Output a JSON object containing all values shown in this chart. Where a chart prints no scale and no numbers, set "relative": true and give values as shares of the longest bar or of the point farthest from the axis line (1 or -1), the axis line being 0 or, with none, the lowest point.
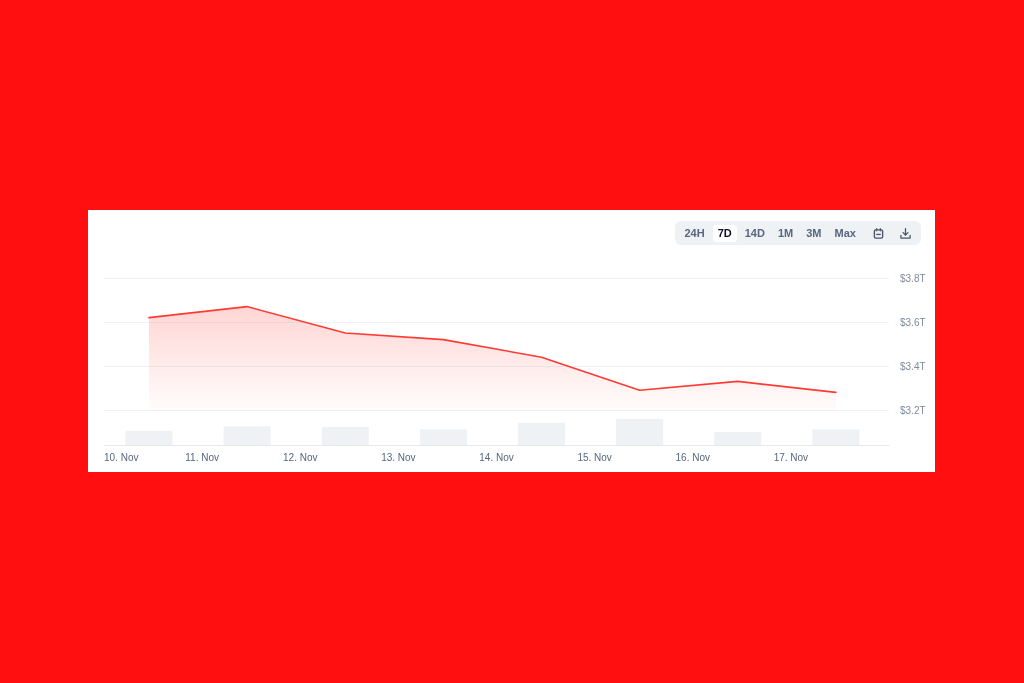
{
  "chart_data": [
    {
      "type": "area",
      "x": [
        "--11-10T11:00",
        "--11-11T11:00",
        "--11-12T11:00",
        "--11-13T11:00",
        "--11-14T11:00",
        "--11-15T11:00",
        "--11-16T11:00",
        "--11-17T11:00"
      ],
      "values": [
        3.62,
        3.67,
        3.55,
        3.52,
        3.44,
        3.29,
        3.33,
        3.28
      ],
      "color": "#ff3a33",
      "xlim": [
        "--11-10",
        "--11-18"
      ],
      "ylim": [
        3.2,
        3.8
      ],
      "yticks": [
        {
          "value": 3.2,
          "label": "$3.2T"
        },
        {
          "value": 3.4,
          "label": "$3.4T"
        },
        {
          "value": 3.6,
          "label": "$3.6T"
        },
        {
          "value": 3.8,
          "label": "$3.8T"
        }
      ],
      "grid": "y",
      "tick_labels": "y",
      "annotations": [
        "24H",
        "7D",
        "14D",
        "1M",
        "3M",
        "Max"
      ]
    },
    {
      "type": "bar",
      "x": [
        "--11-10T11:00",
        "--11-11T11:00",
        "--11-12T11:00",
        "--11-13T11:00",
        "--11-14T11:00",
        "--11-15T11:00",
        "--11-16T11:00",
        "--11-17T11:00"
      ],
      "values": [
        0.55,
        0.72,
        0.69,
        0.61,
        0.86,
        1,
        0.5,
        0.61
      ],
      "color": "#eff2f5",
      "relative": true,
      "xlim": [
        "--11-10",
        "--11-18"
      ],
      "xticks": [
        {
          "value": "--11-10",
          "label": "10. Nov"
        },
        {
          "value": "--11-11",
          "label": "11. Nov"
        },
        {
          "value": "--11-12",
          "label": "12. Nov"
        },
        {
          "value": "--11-13",
          "label": "13. Nov"
        },
        {
          "value": "--11-14",
          "label": "14. Nov"
        },
        {
          "value": "--11-15",
          "label": "15. Nov"
        },
        {
          "value": "--11-16",
          "label": "16. Nov"
        },
        {
          "value": "--11-17",
          "label": "17. Nov"
        }
      ],
      "tick_labels": "x"
    }
  ]
}
